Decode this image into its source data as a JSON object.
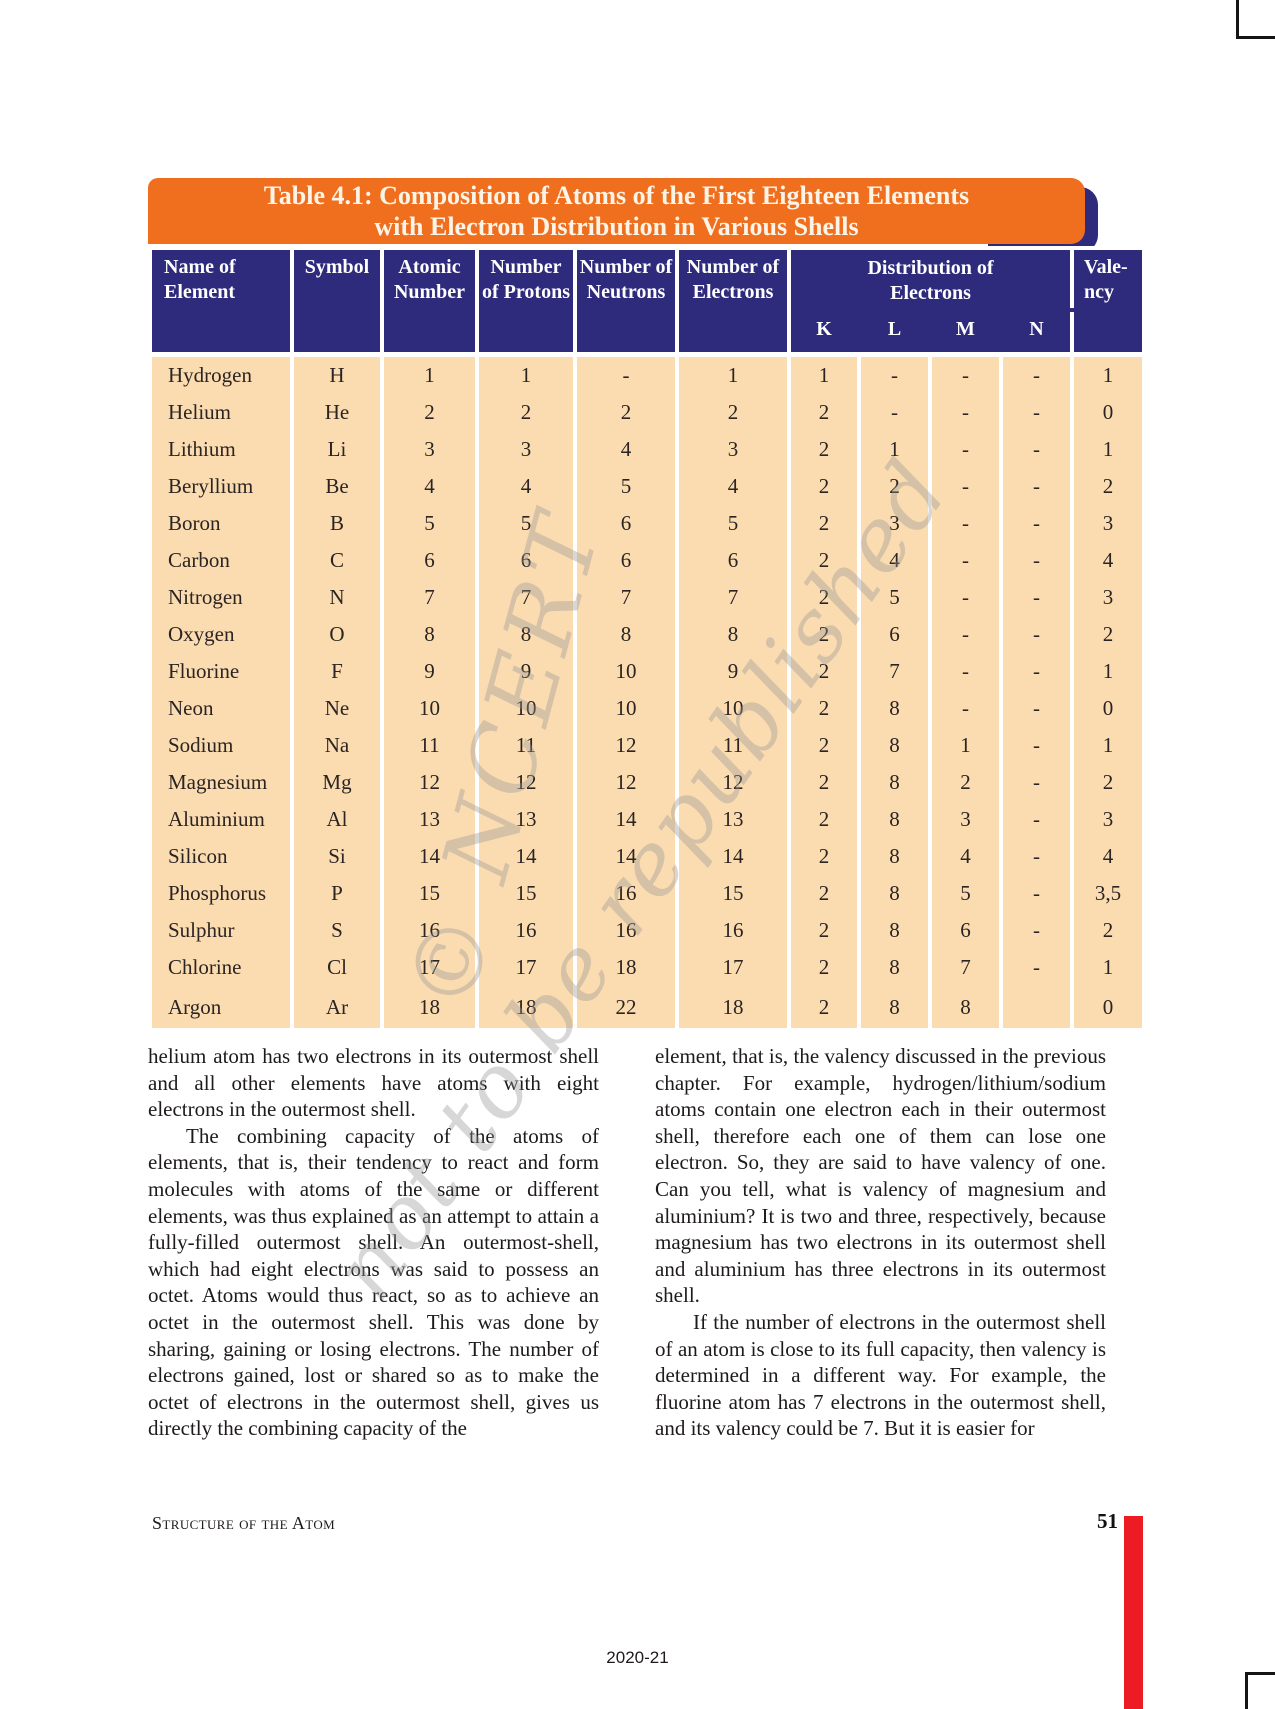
{
  "banner": {
    "title_line1": "Table 4.1: Composition of Atoms of the First Eighteen Elements",
    "title_line2": "with Electron Distribution in Various Shells"
  },
  "table": {
    "headers": {
      "name_of_element": "Name of Element",
      "symbol": "Symbol",
      "atomic_number": "Atomic Number",
      "number_of_protons": "Number of Protons",
      "number_of_neutrons": "Number of Neutrons",
      "number_of_electrons": "Number of Electrons",
      "distribution_line1": "Distribution of",
      "distribution_line2": "Electrons",
      "shells": [
        "K",
        "L",
        "M",
        "N"
      ],
      "valency_line1": "Vale-",
      "valency_line2": "ncy"
    },
    "rows": [
      [
        "Hydrogen",
        "H",
        "1",
        "1",
        "-",
        "1",
        "1",
        "-",
        "-",
        "-",
        "1"
      ],
      [
        "Helium",
        "He",
        "2",
        "2",
        "2",
        "2",
        "2",
        "-",
        "-",
        "-",
        "0"
      ],
      [
        "Lithium",
        "Li",
        "3",
        "3",
        "4",
        "3",
        "2",
        "1",
        "-",
        "-",
        "1"
      ],
      [
        "Beryllium",
        "Be",
        "4",
        "4",
        "5",
        "4",
        "2",
        "2",
        "-",
        "-",
        "2"
      ],
      [
        "Boron",
        "B",
        "5",
        "5",
        "6",
        "5",
        "2",
        "3",
        "-",
        "-",
        "3"
      ],
      [
        "Carbon",
        "C",
        "6",
        "6",
        "6",
        "6",
        "2",
        "4",
        "-",
        "-",
        "4"
      ],
      [
        "Nitrogen",
        "N",
        "7",
        "7",
        "7",
        "7",
        "2",
        "5",
        "-",
        "-",
        "3"
      ],
      [
        "Oxygen",
        "O",
        "8",
        "8",
        "8",
        "8",
        "2",
        "6",
        "-",
        "-",
        "2"
      ],
      [
        "Fluorine",
        "F",
        "9",
        "9",
        "10",
        "9",
        "2",
        "7",
        "-",
        "-",
        "1"
      ],
      [
        "Neon",
        "Ne",
        "10",
        "10",
        "10",
        "10",
        "2",
        "8",
        "-",
        "-",
        "0"
      ],
      [
        "Sodium",
        "Na",
        "11",
        "11",
        "12",
        "11",
        "2",
        "8",
        "1",
        "-",
        "1"
      ],
      [
        "Magnesium",
        "Mg",
        "12",
        "12",
        "12",
        "12",
        "2",
        "8",
        "2",
        "-",
        "2"
      ],
      [
        "Aluminium",
        "Al",
        "13",
        "13",
        "14",
        "13",
        "2",
        "8",
        "3",
        "-",
        "3"
      ],
      [
        "Silicon",
        "Si",
        "14",
        "14",
        "14",
        "14",
        "2",
        "8",
        "4",
        "-",
        "4"
      ],
      [
        "Phosphorus",
        "P",
        "15",
        "15",
        "16",
        "15",
        "2",
        "8",
        "5",
        "-",
        "3,5"
      ],
      [
        "Sulphur",
        "S",
        "16",
        "16",
        "16",
        "16",
        "2",
        "8",
        "6",
        "-",
        "2"
      ],
      [
        "Chlorine",
        "Cl",
        "17",
        "17",
        "18",
        "17",
        "2",
        "8",
        "7",
        "-",
        "1"
      ],
      [
        "Argon",
        "Ar",
        "18",
        "18",
        "22",
        "18",
        "2",
        "8",
        "8",
        "",
        "0"
      ]
    ]
  },
  "watermark": {
    "line1": "© NCERT",
    "line2": "not to be republished"
  },
  "content": {
    "left_column": {
      "para1": "helium atom has two electrons in its outermost shell and all other elements have atoms with eight electrons in the outermost shell.",
      "para2": "The combining capacity of the atoms of elements, that is, their tendency to react and form molecules with atoms of the same or different elements, was thus explained as an attempt to attain a fully-filled outermost shell. An outermost-shell, which had eight electrons was said to possess an octet. Atoms would thus react, so as to achieve an octet in the outermost shell. This was done by sharing, gaining or losing electrons. The number of electrons gained, lost or shared so as to make the octet of electrons in the outermost shell, gives us directly the combining capacity of the"
    },
    "right_column": {
      "para1": "element, that is, the valency discussed in the previous chapter. For example, hydrogen/lithium/sodium atoms contain one electron each in their outermost shell, therefore each one of them can lose one electron. So, they are said to have valency of one. Can you tell, what is valency of magnesium and aluminium? It is two and three, respectively, because magnesium has two electrons in its outermost shell and aluminium has three electrons in its outermost shell.",
      "para2": "If the number of electrons in the outermost shell of an atom is close to its full capacity, then valency is determined in a different way. For example, the fluorine atom has 7 electrons in the outermost shell, and its valency could be 7. But it is easier for"
    }
  },
  "footer": {
    "chapter": "Structure of the Atom",
    "page_number": "51",
    "edition": "2020-21"
  },
  "colors": {
    "banner_orange": "#ef6f1f",
    "header_navy": "#2e2a7c",
    "body_peach": "#fbdcb1",
    "accent_red": "#ec1b24"
  }
}
